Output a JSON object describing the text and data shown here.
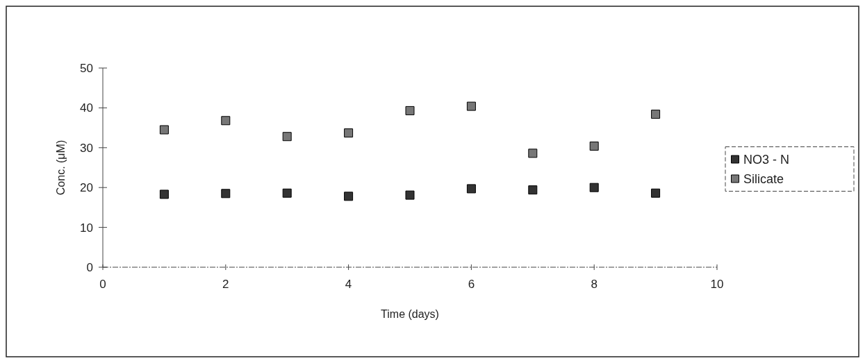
{
  "chart_data": {
    "type": "scatter",
    "xlabel": "Time (days)",
    "ylabel": "Conc. (μM)",
    "x": [
      1,
      2,
      3,
      4,
      5,
      6,
      7,
      8,
      9
    ],
    "xlim": [
      0,
      10
    ],
    "xticks": [
      0,
      2,
      4,
      6,
      8,
      10
    ],
    "ylim": [
      0,
      50
    ],
    "yticks": [
      0,
      10,
      20,
      30,
      40,
      50
    ],
    "marker": "square",
    "legend": "right",
    "grid": false,
    "series": [
      {
        "name": "NO3 - N",
        "color": "#333333",
        "values": [
          18.3,
          18.5,
          18.6,
          17.8,
          18.1,
          19.7,
          19.4,
          20.0,
          18.6
        ]
      },
      {
        "name": "Silicate",
        "color": "#777777",
        "values": [
          34.5,
          36.8,
          32.8,
          33.7,
          39.3,
          40.4,
          28.6,
          30.4,
          38.4
        ]
      }
    ]
  }
}
